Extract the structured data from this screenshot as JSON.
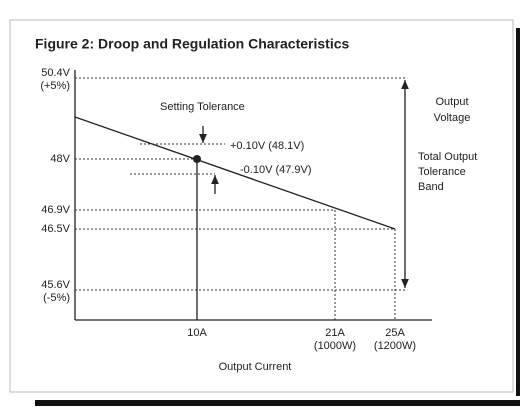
{
  "title": "Figure 2: Droop and Regulation Characteristics",
  "y_labels": [
    [
      "50.4V",
      "(+5%)"
    ],
    [
      "48V"
    ],
    [
      "46.9V"
    ],
    [
      "46.5V"
    ],
    [
      "45.6V",
      "(-5%)"
    ]
  ],
  "x_labels": [
    [
      "10A"
    ],
    [
      "21A",
      "(1000W)"
    ],
    [
      "25A",
      "(1200W)"
    ]
  ],
  "x_axis_label": "Output Current",
  "setting_tolerance": "Setting Tolerance",
  "upper_tolerance": "+0.10V (48.1V)",
  "lower_tolerance": "-0.10V  (47.9V)",
  "output_voltage": [
    "Output",
    "Voltage"
  ],
  "tolerance_band": [
    "Total Output",
    "Tolerance",
    "Band"
  ]
}
